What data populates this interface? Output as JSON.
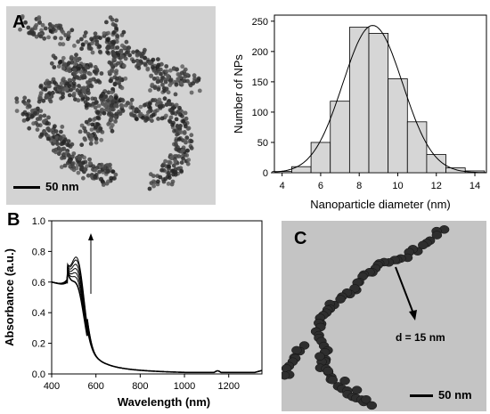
{
  "panels": {
    "a": {
      "letter": "A",
      "scale_label": "50 nm"
    },
    "b": {
      "letter": "B"
    },
    "c": {
      "letter": "C",
      "scale_label": "50 nm",
      "annotation": "d = 15 nm"
    }
  },
  "colors": {
    "bar_fill": "#d6d6d6",
    "particle_dark": "#2e2e2e",
    "tem_bg_a": "#d3d3d3",
    "tem_bg_c": "#c4c4c4"
  },
  "chart_data": [
    {
      "type": "bar",
      "panel": "A",
      "xlabel": "Nanoparticle diameter (nm)",
      "ylabel": "Number of NPs",
      "xlim": [
        3.6,
        14.6
      ],
      "ylim": [
        0,
        260
      ],
      "xticks": [
        4,
        6,
        8,
        10,
        12,
        14
      ],
      "yticks": [
        0,
        50,
        100,
        150,
        200,
        250
      ],
      "x": [
        4,
        5,
        6,
        7,
        8,
        9,
        10,
        11,
        12,
        13,
        14
      ],
      "values": [
        2,
        10,
        50,
        118,
        240,
        230,
        155,
        84,
        30,
        8,
        3
      ],
      "fit": {
        "type": "gaussian",
        "center": 8.7,
        "peak": 243,
        "sigma": 1.55
      }
    },
    {
      "type": "line",
      "panel": "B",
      "xlabel": "Wavelength (nm)",
      "ylabel": "Absorbance (a.u.)",
      "xlim": [
        400,
        1350
      ],
      "ylim": [
        0,
        1.0
      ],
      "xticks": [
        400,
        600,
        800,
        1000,
        1200
      ],
      "yticks": [
        0.0,
        0.2,
        0.4,
        0.6,
        0.8,
        1.0
      ],
      "peak_wavelength": 520,
      "arrow": "up",
      "series": [
        {
          "peak_absorbance": 0.82
        },
        {
          "peak_absorbance": 0.86
        },
        {
          "peak_absorbance": 0.89
        },
        {
          "peak_absorbance": 0.92
        },
        {
          "peak_absorbance": 0.95
        },
        {
          "peak_absorbance": 0.98
        },
        {
          "peak_absorbance": 1.0
        }
      ]
    }
  ]
}
